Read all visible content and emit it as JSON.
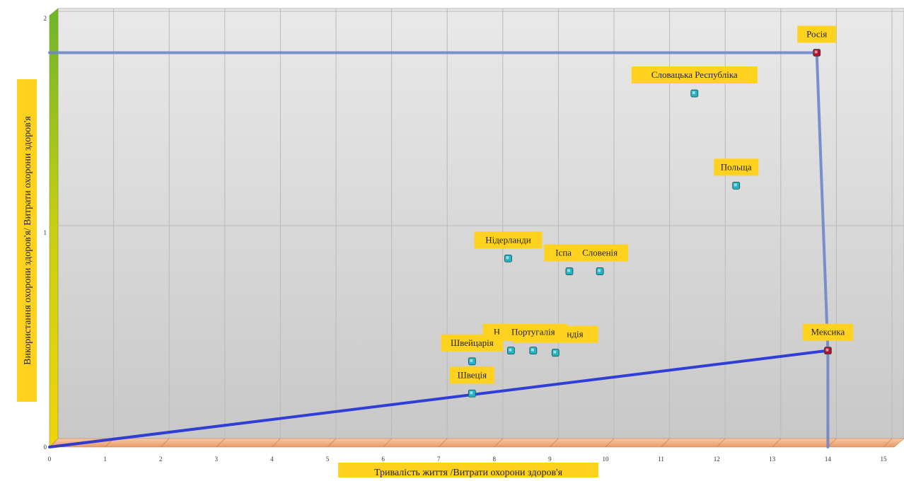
{
  "chart_data": {
    "type": "scatter",
    "title": "",
    "xlabel": "Тривалість життя /Витрати охорони здоров'я",
    "ylabel": "Використання охорони здоров'я/ Витрати охорони здоров'я",
    "xlim": [
      0,
      15.5
    ],
    "ylim": [
      0,
      2.05
    ],
    "x_ticks": [
      "0",
      "1",
      "2",
      "3",
      "4",
      "5",
      "6",
      "7",
      "8",
      "9",
      "10",
      "11",
      "12",
      "13",
      "14",
      "15"
    ],
    "y_ticks": [
      "0",
      "1",
      "2"
    ],
    "grid": true,
    "legend": "none",
    "points": [
      {
        "label": "Росія",
        "x": 13.8,
        "y": 1.84,
        "style": "highlight"
      },
      {
        "label": "Словацька Республіка",
        "x": 11.6,
        "y": 1.65,
        "style": "normal"
      },
      {
        "label": "Польща",
        "x": 12.35,
        "y": 1.22,
        "style": "normal"
      },
      {
        "label": "Нідерланди",
        "x": 8.25,
        "y": 0.88,
        "style": "normal"
      },
      {
        "label": "Іспанія",
        "x": 9.35,
        "y": 0.82,
        "style": "normal"
      },
      {
        "label": "Словенія",
        "x": 9.9,
        "y": 0.82,
        "style": "normal"
      },
      {
        "label": "Норвегія",
        "x": 8.3,
        "y": 0.45,
        "style": "normal"
      },
      {
        "label": "Нова Зеландія",
        "x": 9.1,
        "y": 0.44,
        "style": "normal"
      },
      {
        "label": "Португалія",
        "x": 8.7,
        "y": 0.45,
        "style": "normal"
      },
      {
        "label": "Швейцарія",
        "x": 7.6,
        "y": 0.4,
        "style": "normal"
      },
      {
        "label": "Швеція",
        "x": 7.6,
        "y": 0.25,
        "style": "normal"
      },
      {
        "label": "Мексика",
        "x": 14.0,
        "y": 0.45,
        "style": "highlight"
      }
    ],
    "frontier_lines": [
      {
        "from": [
          0,
          0
        ],
        "to": [
          14.0,
          0.45
        ],
        "color": "#1f2fd6"
      },
      {
        "from": [
          0,
          1.84
        ],
        "to": [
          13.8,
          1.84
        ],
        "color": "#6f86c9"
      },
      {
        "from": [
          13.8,
          1.84
        ],
        "to": [
          14.0,
          0.45
        ],
        "color": "#6f86c9"
      },
      {
        "from": [
          14.0,
          0.45
        ],
        "to": [
          14.0,
          0
        ],
        "color": "#6f86c9"
      }
    ],
    "colors": {
      "label_bg": "#ffd21f",
      "point_normal": "#22b4c2",
      "point_highlight": "#b5102a",
      "wall_top": "#e9e9e9",
      "wall_bottom": "#c9c9c9",
      "floor": "#f2b38a",
      "axis_gradient_top": "#6cb52c",
      "axis_gradient_bottom": "#f2d40a"
    }
  }
}
